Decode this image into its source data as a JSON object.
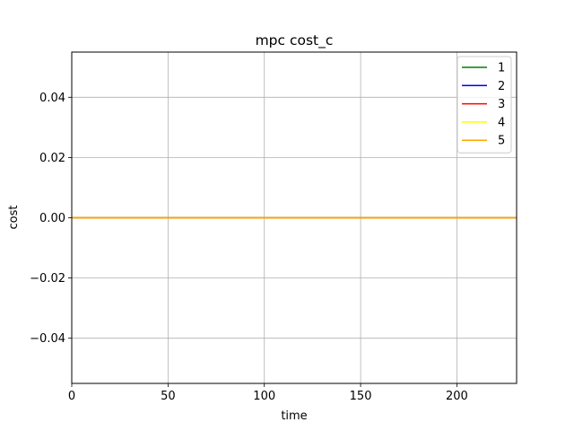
{
  "chart_data": {
    "type": "line",
    "title": "mpc cost_c",
    "xlabel": "time",
    "ylabel": "cost",
    "xlim": [
      0,
      231
    ],
    "ylim": [
      -0.055,
      0.055
    ],
    "xticks": [
      0,
      50,
      100,
      150,
      200
    ],
    "xtick_labels": [
      "0",
      "50",
      "100",
      "150",
      "200"
    ],
    "yticks": [
      -0.04,
      -0.02,
      0.0,
      0.02,
      0.04
    ],
    "ytick_labels": [
      "−0.04",
      "−0.02",
      "0.00",
      "0.02",
      "0.04"
    ],
    "grid": true,
    "legend_position": "top-right",
    "series": [
      {
        "name": "1",
        "color": "#008000",
        "x": [
          0,
          231
        ],
        "y": [
          0,
          0
        ]
      },
      {
        "name": "2",
        "color": "#0000ff",
        "x": [
          0,
          231
        ],
        "y": [
          0,
          0
        ]
      },
      {
        "name": "3",
        "color": "#ff0000",
        "x": [
          0,
          231
        ],
        "y": [
          0,
          0
        ]
      },
      {
        "name": "4",
        "color": "#ffff00",
        "x": [
          0,
          231
        ],
        "y": [
          0,
          0
        ]
      },
      {
        "name": "5",
        "color": "#ffa500",
        "x": [
          0,
          231
        ],
        "y": [
          0,
          0
        ]
      }
    ]
  }
}
